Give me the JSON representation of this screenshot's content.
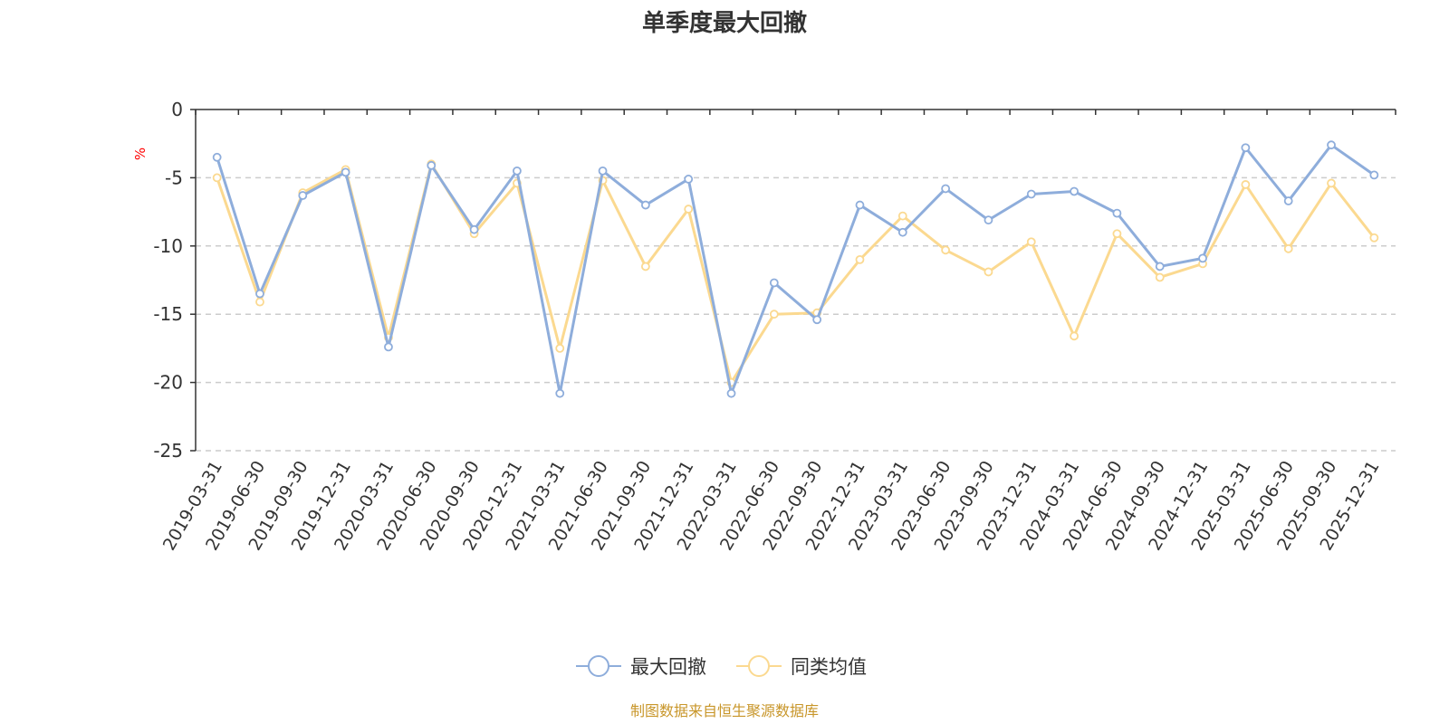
{
  "chart_data": {
    "type": "line",
    "title": "单季度最大回撤",
    "ylabel": "%",
    "ylim": [
      -25,
      0
    ],
    "yticks": [
      0,
      -5,
      -10,
      -15,
      -20,
      -25
    ],
    "grid": true,
    "legend_position": "bottom",
    "categories": [
      "2019-03-31",
      "2019-06-30",
      "2019-09-30",
      "2019-12-31",
      "2020-03-31",
      "2020-06-30",
      "2020-09-30",
      "2020-12-31",
      "2021-03-31",
      "2021-06-30",
      "2021-09-30",
      "2021-12-31",
      "2022-03-31",
      "2022-06-30",
      "2022-09-30",
      "2022-12-31",
      "2023-03-31",
      "2023-06-30",
      "2023-09-30",
      "2023-12-31",
      "2024-03-31",
      "2024-06-30",
      "2024-09-30",
      "2024-12-31",
      "2025-03-31",
      "2025-06-30",
      "2025-09-30",
      "2025-12-31"
    ],
    "series": [
      {
        "name": "最大回撤",
        "color": "#8eaddb",
        "values": [
          -3.5,
          -13.5,
          -6.3,
          -4.6,
          -17.4,
          -4.1,
          -8.8,
          -4.5,
          -20.8,
          -4.5,
          -7.0,
          -5.1,
          -20.8,
          -12.7,
          -15.4,
          -7.0,
          -9.0,
          -5.8,
          -8.1,
          -6.2,
          -6.0,
          -7.6,
          -11.5,
          -10.9,
          -2.8,
          -6.7,
          -2.6,
          -4.8
        ]
      },
      {
        "name": "同类均值",
        "color": "#fbd990",
        "values": [
          -5.0,
          -14.1,
          -6.1,
          -4.4,
          -16.7,
          -4.0,
          -9.1,
          -5.4,
          -17.5,
          -5.2,
          -11.5,
          -7.3,
          -20.0,
          -15.0,
          -14.9,
          -11.0,
          -7.8,
          -10.3,
          -11.9,
          -9.7,
          -16.6,
          -9.1,
          -12.3,
          -11.3,
          -5.5,
          -10.2,
          -5.4,
          -9.4
        ]
      }
    ]
  },
  "source_note": "制图数据来自恒生聚源数据库"
}
